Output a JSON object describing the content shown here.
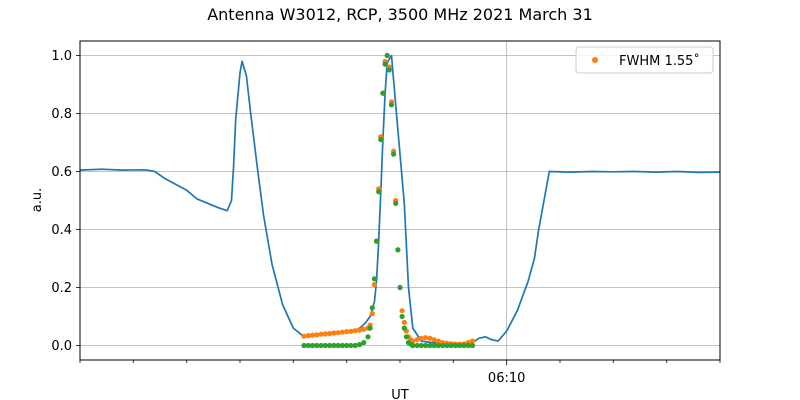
{
  "chart_data": {
    "type": "line",
    "title": "Antenna W3012, RCP, 3500 MHz 2021 March 31",
    "xlabel": "UT",
    "ylabel": "a.u.",
    "x_unit": "minutes after 05:50 UT",
    "xlim": [
      0,
      30
    ],
    "ylim": [
      -0.05,
      1.05
    ],
    "yticks": [
      0.0,
      0.2,
      0.4,
      0.6,
      0.8,
      1.0
    ],
    "ytick_labels": [
      "0.0",
      "0.2",
      "0.4",
      "0.6",
      "0.8",
      "1.0"
    ],
    "xticks_major": [
      20
    ],
    "xtick_labels": [
      "06:10"
    ],
    "xticks_minor": [
      0,
      2.5,
      5,
      7.5,
      10,
      12.5,
      15,
      17.5,
      22.5,
      25,
      27.5,
      30
    ],
    "grid": true,
    "legend": {
      "placement": "top-right",
      "entries": [
        {
          "label": "FWHM 1.55$^\\circ$",
          "display": "FWHM 1.55˚",
          "color": "#ff7f0e",
          "marker": "circle"
        }
      ]
    },
    "series": [
      {
        "name": "",
        "kind": "line",
        "color": "#1f77b4",
        "x": [
          0,
          1,
          2,
          3,
          3.2,
          3.5,
          4,
          4.5,
          5,
          5.5,
          6,
          6.5,
          6.9,
          7.1,
          7.2,
          7.3,
          7.5,
          7.6,
          7.8,
          8.0,
          8.3,
          8.6,
          9,
          9.5,
          10,
          10.5,
          10.8,
          11,
          11.5,
          12,
          12.5,
          13,
          13.2,
          13.4,
          13.6,
          13.8,
          13.9,
          14.0,
          14.1,
          14.2,
          14.3,
          14.4,
          14.6,
          14.8,
          15.0,
          15.2,
          15.4,
          15.6,
          16,
          16.5,
          17,
          17.5,
          18,
          18.5,
          18.7,
          19,
          19.3,
          19.6,
          20,
          20.5,
          21,
          21.3,
          21.5,
          22,
          23,
          24,
          25,
          26,
          27,
          28,
          29,
          30
        ],
        "y": [
          0.605,
          0.608,
          0.605,
          0.606,
          0.604,
          0.6,
          0.575,
          0.555,
          0.535,
          0.505,
          0.49,
          0.475,
          0.465,
          0.5,
          0.62,
          0.78,
          0.94,
          0.98,
          0.93,
          0.8,
          0.62,
          0.45,
          0.28,
          0.14,
          0.06,
          0.03,
          0.033,
          0.036,
          0.038,
          0.042,
          0.047,
          0.055,
          0.065,
          0.08,
          0.1,
          0.15,
          0.22,
          0.36,
          0.53,
          0.71,
          0.87,
          0.975,
          1.0,
          0.83,
          0.66,
          0.49,
          0.2,
          0.06,
          0.015,
          0.01,
          0.01,
          0.01,
          0.005,
          0.015,
          0.025,
          0.03,
          0.02,
          0.015,
          0.05,
          0.12,
          0.22,
          0.3,
          0.4,
          0.6,
          0.598,
          0.6,
          0.599,
          0.6,
          0.598,
          0.6,
          0.597,
          0.598
        ]
      },
      {
        "name": "FWHM 1.55˚",
        "kind": "scatter",
        "color": "#ff7f0e",
        "x": [
          10.5,
          10.7,
          10.9,
          11.1,
          11.3,
          11.5,
          11.7,
          11.9,
          12.1,
          12.3,
          12.5,
          12.7,
          12.9,
          13.1,
          13.3,
          13.5,
          13.6,
          13.7,
          13.8,
          13.9,
          14.0,
          14.1,
          14.2,
          14.3,
          14.4,
          14.5,
          14.6,
          14.7,
          14.8,
          14.9,
          15.0,
          15.1,
          15.2,
          15.3,
          15.4,
          15.5,
          15.6,
          15.8,
          16.0,
          16.2,
          16.4,
          16.6,
          16.8,
          17.0,
          17.2,
          17.4,
          17.6,
          17.8,
          18.0,
          18.2,
          18.4
        ],
        "y": [
          0.032,
          0.034,
          0.036,
          0.037,
          0.039,
          0.04,
          0.041,
          0.043,
          0.044,
          0.046,
          0.048,
          0.049,
          0.051,
          0.053,
          0.056,
          0.06,
          0.07,
          0.11,
          0.21,
          0.36,
          0.54,
          0.72,
          0.87,
          0.98,
          1.0,
          0.96,
          0.84,
          0.67,
          0.5,
          0.33,
          0.2,
          0.12,
          0.08,
          0.05,
          0.03,
          0.02,
          0.015,
          0.02,
          0.025,
          0.027,
          0.025,
          0.02,
          0.015,
          0.01,
          0.008,
          0.006,
          0.005,
          0.005,
          0.006,
          0.01,
          0.015
        ]
      },
      {
        "name": "",
        "kind": "scatter",
        "color": "#2ca02c",
        "x": [
          10.5,
          10.7,
          10.9,
          11.1,
          11.3,
          11.5,
          11.7,
          11.9,
          12.1,
          12.3,
          12.5,
          12.7,
          12.9,
          13.1,
          13.3,
          13.5,
          13.6,
          13.7,
          13.8,
          13.9,
          14.0,
          14.1,
          14.2,
          14.3,
          14.4,
          14.5,
          14.6,
          14.7,
          14.8,
          14.9,
          15.0,
          15.1,
          15.2,
          15.3,
          15.4,
          15.5,
          15.6,
          15.8,
          16.0,
          16.2,
          16.4,
          16.6,
          16.8,
          17.0,
          17.2,
          17.4,
          17.6,
          17.8,
          18.0,
          18.2,
          18.4
        ],
        "y": [
          0.0,
          0.0,
          0.0,
          0.0,
          0.0,
          0.0,
          0.0,
          0.0,
          0.0,
          0.0,
          0.0,
          0.0,
          0.0,
          0.003,
          0.01,
          0.03,
          0.06,
          0.13,
          0.23,
          0.36,
          0.53,
          0.71,
          0.87,
          0.97,
          1.0,
          0.95,
          0.83,
          0.66,
          0.49,
          0.33,
          0.2,
          0.1,
          0.06,
          0.03,
          0.01,
          0.005,
          0.0,
          0.0,
          0.0,
          0.0,
          0.0,
          0.0,
          0.0,
          0.0,
          0.0,
          0.0,
          0.0,
          0.0,
          0.0,
          0.0,
          0.0
        ]
      }
    ]
  }
}
